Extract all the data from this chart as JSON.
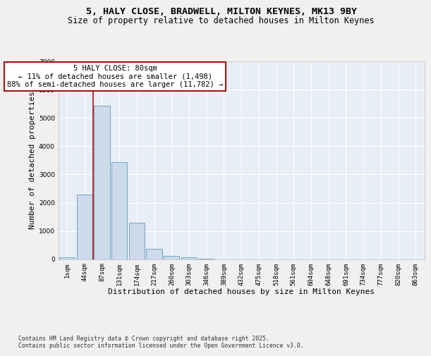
{
  "title1": "5, HALY CLOSE, BRADWELL, MILTON KEYNES, MK13 9BY",
  "title2": "Size of property relative to detached houses in Milton Keynes",
  "xlabel": "Distribution of detached houses by size in Milton Keynes",
  "ylabel": "Number of detached properties",
  "bar_color": "#ccdaea",
  "bar_edge_color": "#6699bb",
  "background_color": "#e8eef6",
  "grid_color": "#ffffff",
  "vline_color": "#aa1111",
  "vline_x": 1.5,
  "annotation_text": "5 HALY CLOSE: 80sqm\n← 11% of detached houses are smaller (1,498)\n88% of semi-detached houses are larger (11,782) →",
  "annotation_box_edgecolor": "#aa1111",
  "categories": [
    "1sqm",
    "44sqm",
    "87sqm",
    "131sqm",
    "174sqm",
    "217sqm",
    "260sqm",
    "303sqm",
    "346sqm",
    "389sqm",
    "432sqm",
    "475sqm",
    "518sqm",
    "561sqm",
    "604sqm",
    "648sqm",
    "691sqm",
    "734sqm",
    "777sqm",
    "820sqm",
    "863sqm"
  ],
  "values": [
    55,
    2280,
    5430,
    3440,
    1290,
    375,
    115,
    75,
    5,
    0,
    0,
    0,
    0,
    0,
    0,
    0,
    0,
    0,
    0,
    0,
    0
  ],
  "ylim": [
    0,
    7000
  ],
  "yticks": [
    0,
    1000,
    2000,
    3000,
    4000,
    5000,
    6000,
    7000
  ],
  "fig_bg": "#f0f0f0",
  "footnote": "Contains HM Land Registry data © Crown copyright and database right 2025.\nContains public sector information licensed under the Open Government Licence v3.0.",
  "title_fontsize": 9.5,
  "subtitle_fontsize": 8.5,
  "axis_label_fontsize": 8,
  "tick_fontsize": 6.5,
  "annotation_fontsize": 7.5
}
